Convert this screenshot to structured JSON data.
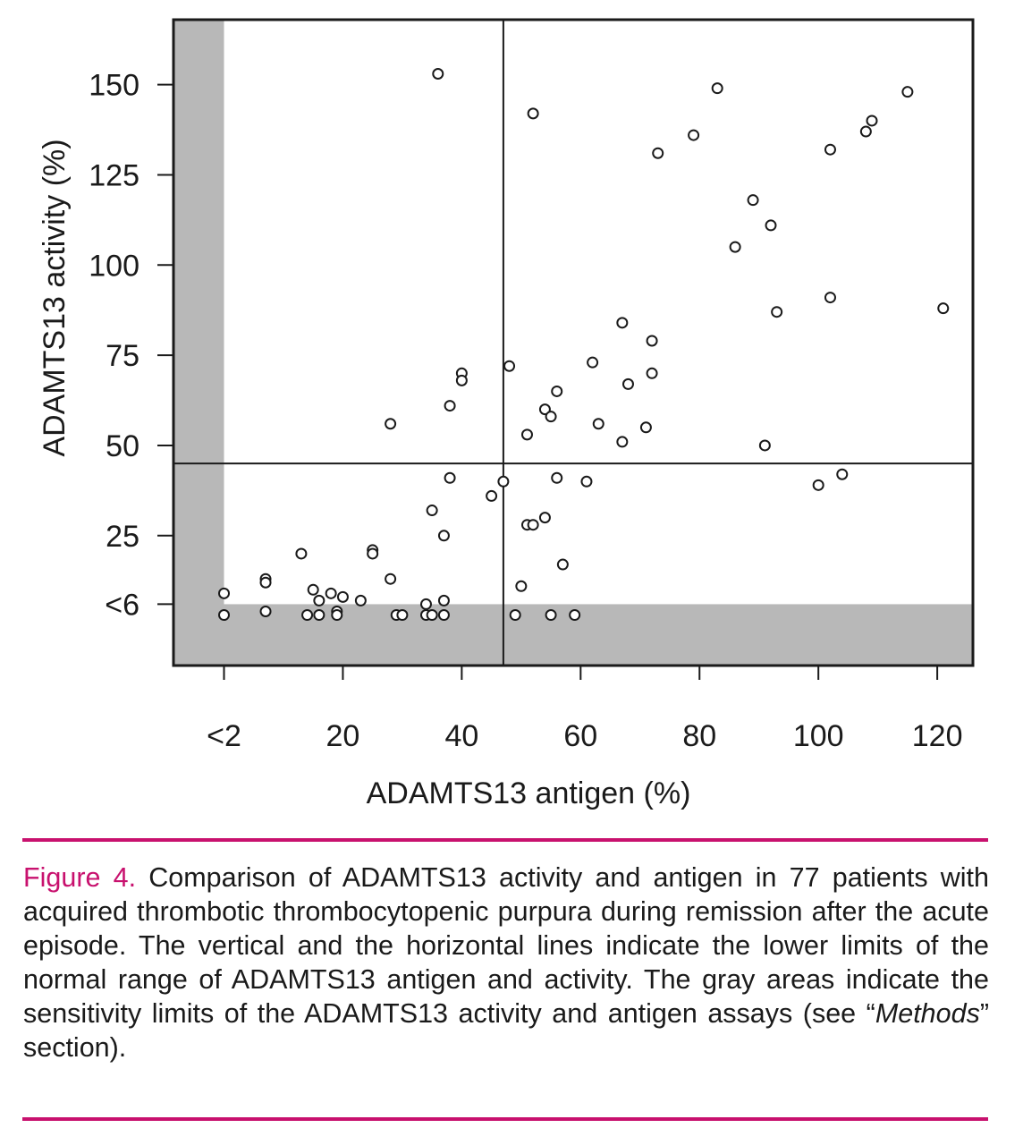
{
  "chart_data": {
    "type": "scatter",
    "xlabel": "ADAMTS13 antigen (%)",
    "ylabel": "ADAMTS13 activity (%)",
    "xlim": [
      -8.5,
      126
    ],
    "ylim": [
      -11,
      168
    ],
    "xticks": [
      {
        "value": 0,
        "label": "<2"
      },
      {
        "value": 20,
        "label": "20"
      },
      {
        "value": 40,
        "label": "40"
      },
      {
        "value": 60,
        "label": "60"
      },
      {
        "value": 80,
        "label": "80"
      },
      {
        "value": 100,
        "label": "100"
      },
      {
        "value": 120,
        "label": "120"
      }
    ],
    "yticks": [
      {
        "value": 6,
        "label": "<6"
      },
      {
        "value": 25,
        "label": "25"
      },
      {
        "value": 50,
        "label": "50"
      },
      {
        "value": 75,
        "label": "75"
      },
      {
        "value": 100,
        "label": "100"
      },
      {
        "value": 125,
        "label": "125"
      },
      {
        "value": 150,
        "label": "150"
      }
    ],
    "reference_lines": {
      "vertical_x": 47,
      "horizontal_y": 45
    },
    "sensitivity_limits": {
      "antigen_below": 0,
      "activity_below": 6
    },
    "points": [
      [
        0,
        9
      ],
      [
        0,
        3
      ],
      [
        7,
        13
      ],
      [
        7,
        12
      ],
      [
        7,
        4
      ],
      [
        13,
        20
      ],
      [
        14,
        3
      ],
      [
        15,
        10
      ],
      [
        16,
        3
      ],
      [
        16,
        7
      ],
      [
        18,
        9
      ],
      [
        19,
        4
      ],
      [
        19,
        3
      ],
      [
        20,
        8
      ],
      [
        23,
        7
      ],
      [
        25,
        21
      ],
      [
        25,
        20
      ],
      [
        28,
        56
      ],
      [
        28,
        13
      ],
      [
        29,
        3
      ],
      [
        30,
        3
      ],
      [
        34,
        6
      ],
      [
        34,
        3
      ],
      [
        35,
        32
      ],
      [
        35,
        3
      ],
      [
        36,
        153
      ],
      [
        37,
        25
      ],
      [
        37,
        7
      ],
      [
        37,
        3
      ],
      [
        38,
        61
      ],
      [
        38,
        41
      ],
      [
        40,
        70
      ],
      [
        40,
        68
      ],
      [
        45,
        36
      ],
      [
        47,
        40
      ],
      [
        48,
        72
      ],
      [
        49,
        3
      ],
      [
        50,
        11
      ],
      [
        51,
        28
      ],
      [
        51,
        53
      ],
      [
        52,
        28
      ],
      [
        52,
        142
      ],
      [
        54,
        30
      ],
      [
        54,
        60
      ],
      [
        55,
        58
      ],
      [
        55,
        3
      ],
      [
        56,
        65
      ],
      [
        56,
        41
      ],
      [
        57,
        17
      ],
      [
        59,
        3
      ],
      [
        61,
        40
      ],
      [
        62,
        73
      ],
      [
        63,
        56
      ],
      [
        67,
        51
      ],
      [
        67,
        84
      ],
      [
        68,
        67
      ],
      [
        71,
        55
      ],
      [
        72,
        70
      ],
      [
        72,
        79
      ],
      [
        73,
        131
      ],
      [
        79,
        136
      ],
      [
        83,
        149
      ],
      [
        86,
        105
      ],
      [
        89,
        118
      ],
      [
        91,
        50
      ],
      [
        92,
        111
      ],
      [
        93,
        87
      ],
      [
        100,
        39
      ],
      [
        102,
        132
      ],
      [
        102,
        91
      ],
      [
        104,
        42
      ],
      [
        108,
        137
      ],
      [
        109,
        140
      ],
      [
        115,
        148
      ],
      [
        121,
        88
      ]
    ]
  },
  "caption": {
    "label": "Figure 4.",
    "text": "Comparison of ADAMTS13 activity and antigen in 77 patients with acquired thrombotic thrombocytopenic purpura during remission after the acute episode. The vertical and the horizontal lines indicate the lower limits of the normal range of ADAMTS13 antigen and activity. The gray areas indicate the sensitivity limits of the ADAMTS13 activity and antigen assays (see “",
    "methods_word": "Methods",
    "text_end": "” section)."
  },
  "colors": {
    "accent": "#c8116e",
    "gray_area": "#b8b8b8",
    "ink": "#1a1a1a"
  }
}
